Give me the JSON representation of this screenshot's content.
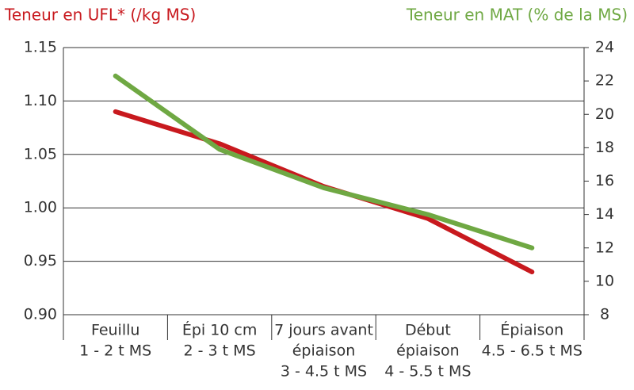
{
  "chart_data": {
    "type": "line",
    "ylabel": "Teneur en UFL* (/kg MS)",
    "y2label": "Teneur en MAT (% de la MS)",
    "categories": [
      [
        "Feuillu",
        "1 - 2 t MS"
      ],
      [
        "Épi 10 cm",
        "2 - 3 t MS"
      ],
      [
        "7 jours avant",
        "épiaison",
        "3 - 4.5 t MS"
      ],
      [
        "Début",
        "épiaison",
        "4 - 5.5 t MS"
      ],
      [
        "Épiaison",
        "4.5 - 6.5 t MS"
      ]
    ],
    "series": [
      {
        "color": "#c8191e",
        "values": [
          1.09,
          1.06,
          1.02,
          0.99,
          0.94
        ]
      },
      {
        "color": "#6fa843",
        "axis": "y2",
        "values": [
          22.3,
          17.9,
          15.6,
          14.0,
          12.0
        ]
      }
    ],
    "ylim": [
      0.9,
      1.15
    ],
    "yticks": [
      {
        "value": 0.9,
        "label": "0.90"
      },
      0.95,
      {
        "value": 1.0,
        "label": "1.00"
      },
      1.05,
      {
        "value": 1.1,
        "label": "1.10"
      },
      1.15
    ],
    "y2lim": [
      8,
      24
    ],
    "y2ticks": [
      8,
      10,
      12,
      14,
      16,
      18,
      20,
      22,
      24
    ],
    "grid": true
  }
}
